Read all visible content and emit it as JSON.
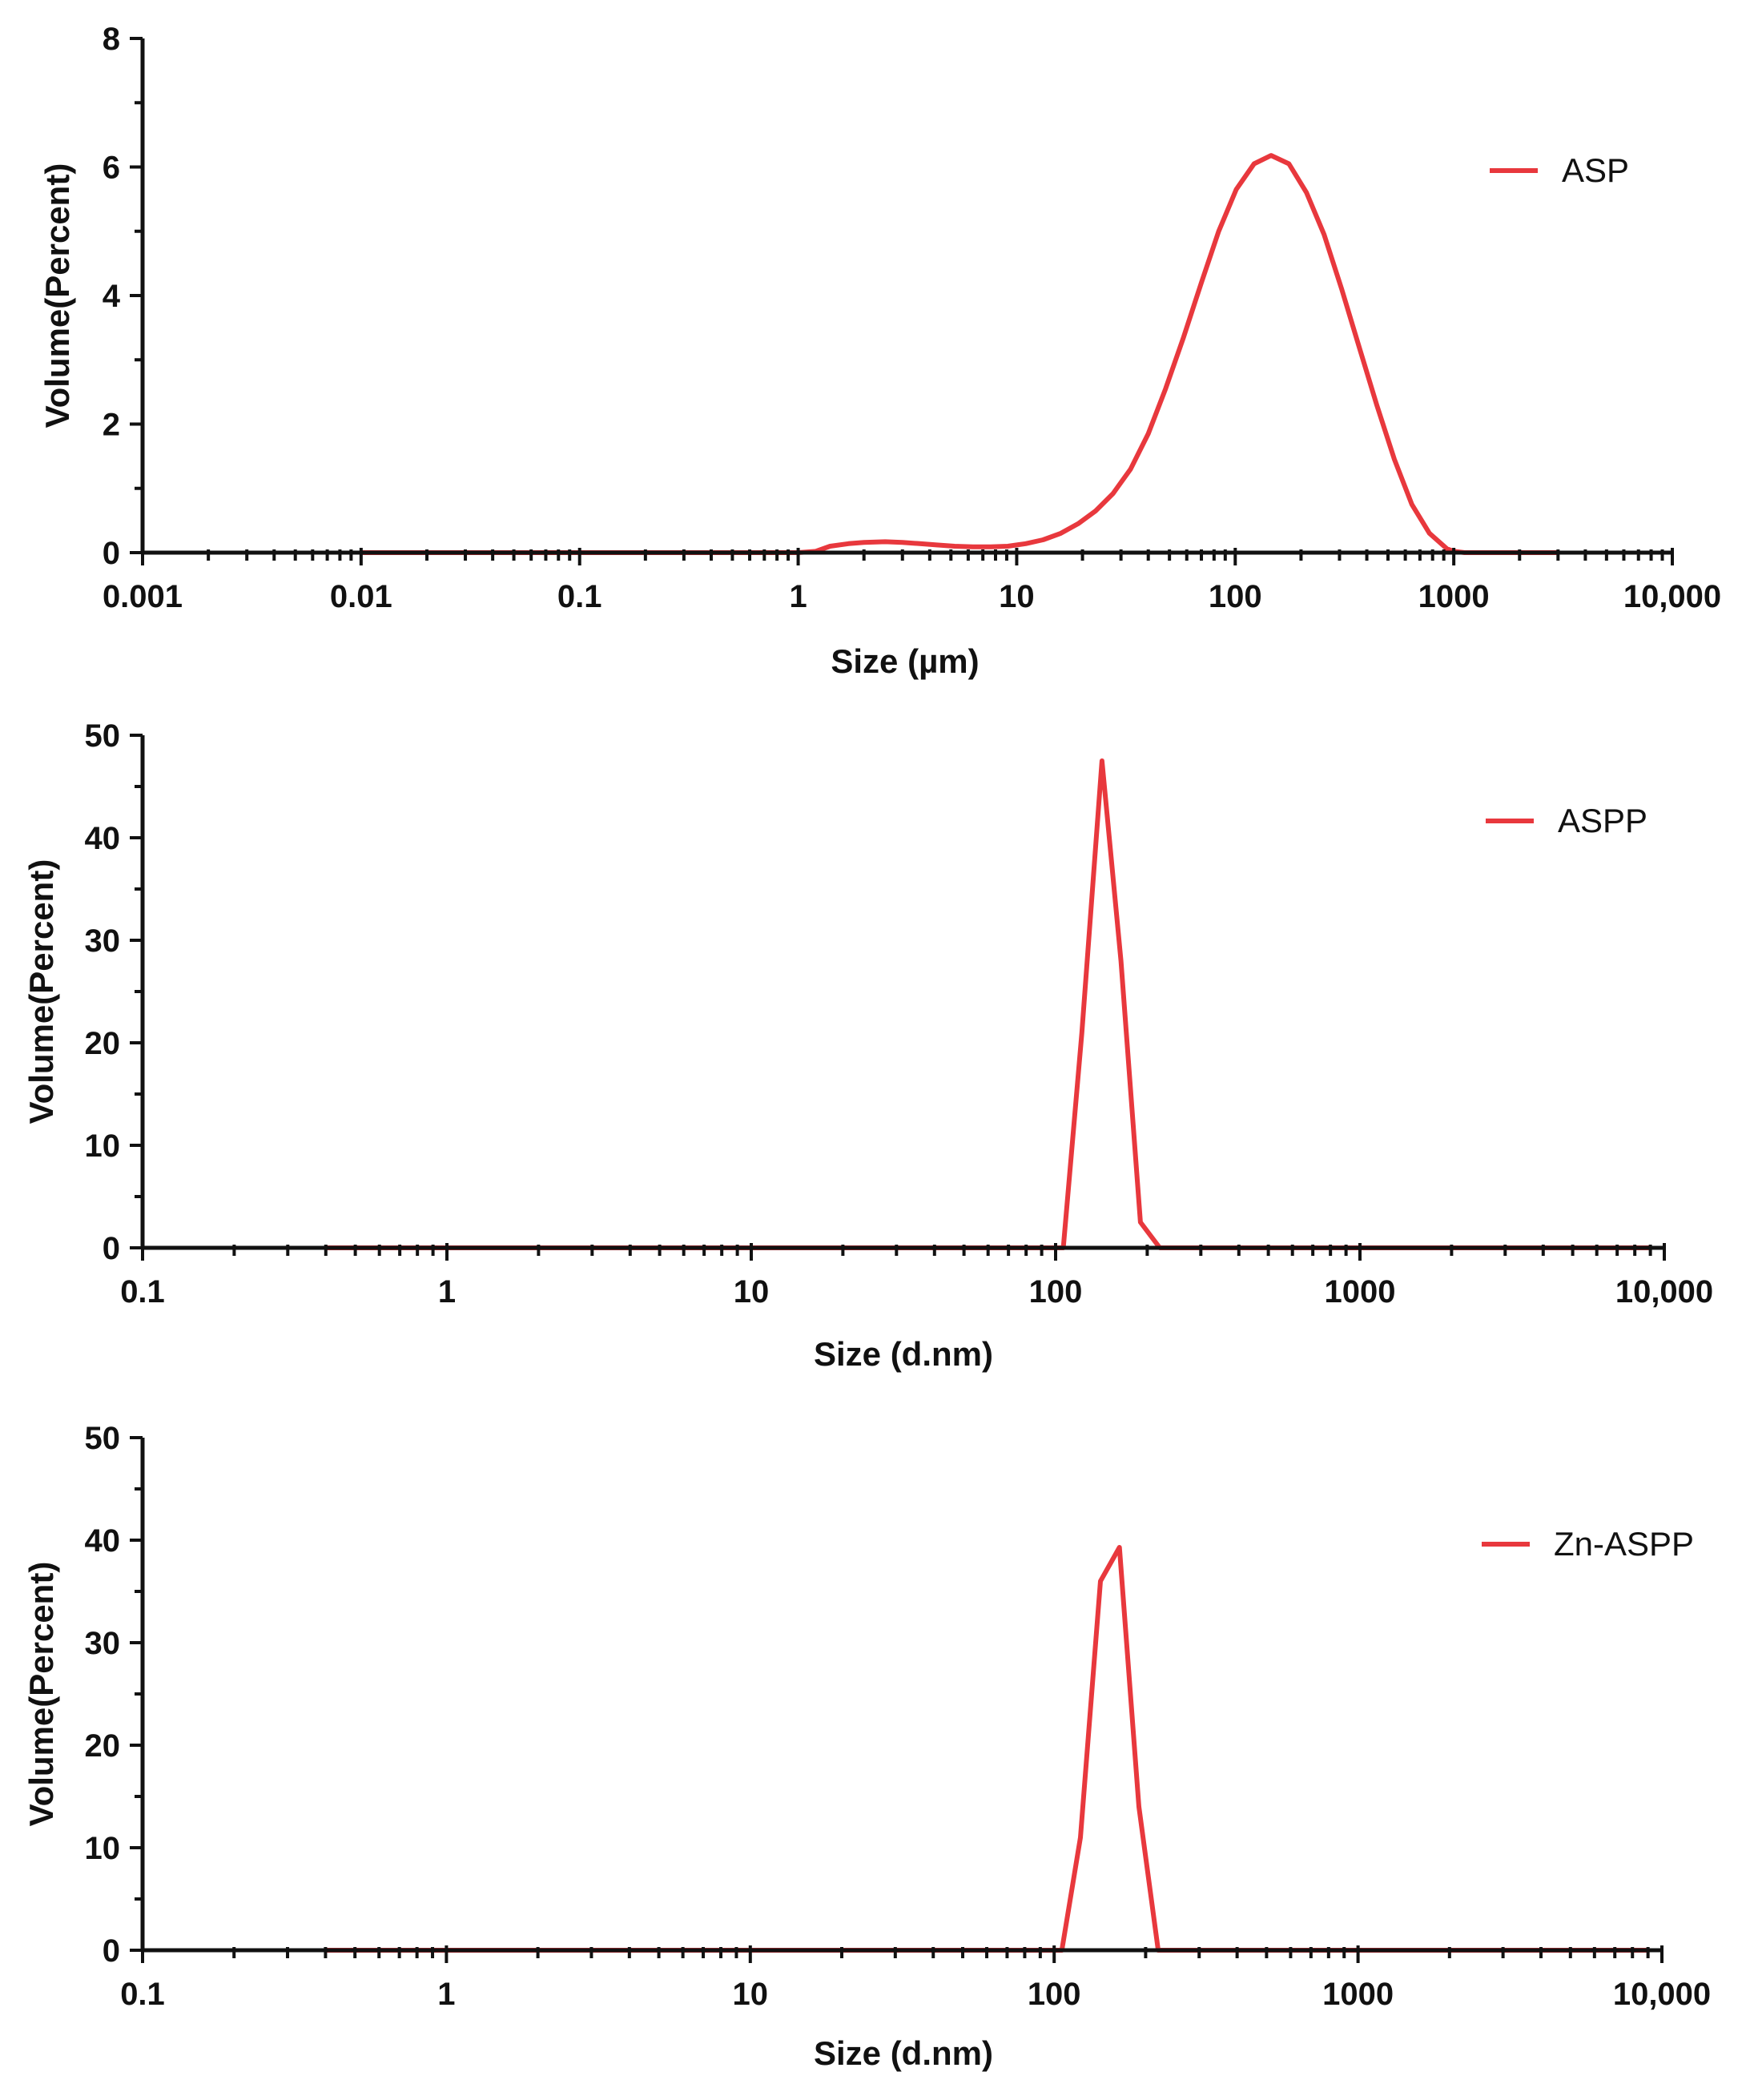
{
  "chart_data": [
    {
      "type": "line",
      "xscale": "log",
      "xlabel": "Size (µm)",
      "ylabel": "Volume(Percent)",
      "xlim": [
        0.001,
        10000
      ],
      "ylim": [
        0,
        8
      ],
      "xticks": [
        {
          "value": 0.001,
          "label": "0.001"
        },
        {
          "value": 0.01,
          "label": "0.01"
        },
        {
          "value": 0.1,
          "label": "0.1"
        },
        {
          "value": 1,
          "label": "1"
        },
        {
          "value": 10,
          "label": "10"
        },
        {
          "value": 100,
          "label": "100"
        },
        {
          "value": 1000,
          "label": "1000"
        },
        {
          "value": 10000,
          "label": "10,000"
        }
      ],
      "yticks": [
        {
          "value": 0,
          "label": "0"
        },
        {
          "value": 2,
          "label": "2"
        },
        {
          "value": 4,
          "label": "4"
        },
        {
          "value": 6,
          "label": "6"
        },
        {
          "value": 8,
          "label": "8"
        }
      ],
      "legend_position": "top-right",
      "series": [
        {
          "name": "ASP",
          "color": "#e8383d",
          "x": [
            0.01,
            0.1,
            1,
            1.2,
            1.4,
            1.7,
            2.0,
            2.5,
            3.0,
            3.6,
            4.3,
            5.2,
            6.3,
            7.6,
            9.1,
            11,
            13.2,
            15.9,
            19.1,
            23,
            27.6,
            33.2,
            40,
            48,
            58,
            70,
            84,
            101,
            122,
            146,
            176,
            212,
            255,
            307,
            369,
            444,
            535,
            643,
            774,
            931,
            1000,
            1120,
            1350,
            1600,
            2000,
            2500,
            3000
          ],
          "y": [
            0,
            0,
            0,
            0.02,
            0.1,
            0.14,
            0.16,
            0.17,
            0.16,
            0.14,
            0.12,
            0.1,
            0.09,
            0.09,
            0.1,
            0.14,
            0.2,
            0.3,
            0.45,
            0.65,
            0.92,
            1.3,
            1.85,
            2.55,
            3.35,
            4.2,
            5.0,
            5.65,
            6.05,
            6.18,
            6.05,
            5.6,
            4.95,
            4.1,
            3.2,
            2.3,
            1.45,
            0.75,
            0.3,
            0.06,
            0.02,
            0,
            0,
            0,
            0,
            0,
            0
          ]
        }
      ]
    },
    {
      "type": "line",
      "xscale": "log",
      "xlabel": "Size (d.nm)",
      "ylabel": "Volume(Percent)",
      "xlim": [
        0.1,
        10000
      ],
      "ylim": [
        0,
        50
      ],
      "xticks": [
        {
          "value": 0.1,
          "label": "0.1"
        },
        {
          "value": 1,
          "label": "1"
        },
        {
          "value": 10,
          "label": "10"
        },
        {
          "value": 100,
          "label": "100"
        },
        {
          "value": 1000,
          "label": "1000"
        },
        {
          "value": 10000,
          "label": "10,000"
        }
      ],
      "yticks": [
        {
          "value": 0,
          "label": "0"
        },
        {
          "value": 10,
          "label": "10"
        },
        {
          "value": 20,
          "label": "20"
        },
        {
          "value": 30,
          "label": "30"
        },
        {
          "value": 40,
          "label": "40"
        },
        {
          "value": 50,
          "label": "50"
        }
      ],
      "legend_position": "top-right",
      "series": [
        {
          "name": "ASPP",
          "color": "#e8383d",
          "x": [
            0.4,
            1,
            10,
            100,
            106,
            122,
            142,
            164,
            190,
            220,
            300,
            1000,
            9000
          ],
          "y": [
            0,
            0,
            0,
            0,
            0,
            21,
            47.5,
            28,
            2.5,
            0,
            0,
            0,
            0
          ]
        }
      ]
    },
    {
      "type": "line",
      "xscale": "log",
      "xlabel": "Size (d.nm)",
      "ylabel": "Volume(Percent)",
      "xlim": [
        0.1,
        10000
      ],
      "ylim": [
        0,
        50
      ],
      "xticks": [
        {
          "value": 0.1,
          "label": "0.1"
        },
        {
          "value": 1,
          "label": "1"
        },
        {
          "value": 10,
          "label": "10"
        },
        {
          "value": 100,
          "label": "100"
        },
        {
          "value": 1000,
          "label": "1000"
        },
        {
          "value": 10000,
          "label": "10,000"
        }
      ],
      "yticks": [
        {
          "value": 0,
          "label": "0"
        },
        {
          "value": 10,
          "label": "10"
        },
        {
          "value": 20,
          "label": "20"
        },
        {
          "value": 30,
          "label": "30"
        },
        {
          "value": 40,
          "label": "40"
        },
        {
          "value": 50,
          "label": "50"
        }
      ],
      "legend_position": "top-right",
      "series": [
        {
          "name": "Zn-ASPP",
          "color": "#e8383d",
          "x": [
            0.4,
            1,
            10,
            100,
            106,
            122,
            142,
            164,
            190,
            220,
            300,
            1000,
            9000
          ],
          "y": [
            0,
            0,
            0,
            0,
            0,
            11,
            36,
            39.3,
            14,
            0,
            0,
            0,
            0
          ]
        }
      ]
    }
  ]
}
